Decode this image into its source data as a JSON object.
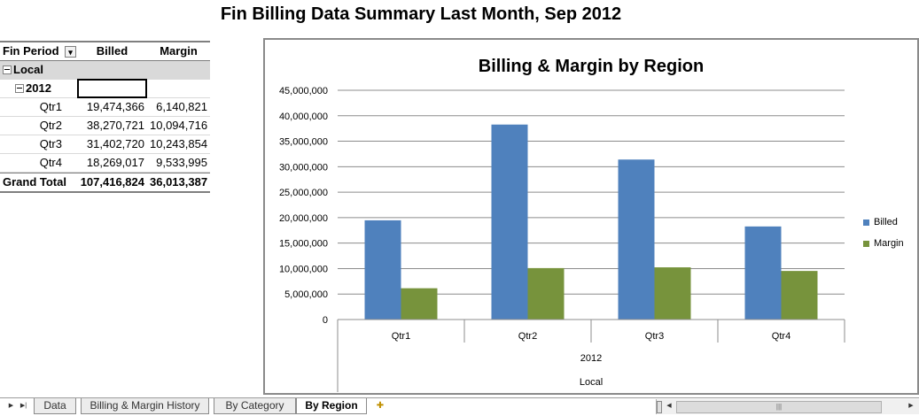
{
  "report_title": "Fin Billing Data Summary Last Month, Sep 2012",
  "pivot": {
    "headers": {
      "period": "Fin Period",
      "billed": "Billed",
      "margin": "Margin"
    },
    "region": "Local",
    "year": "2012",
    "rows": [
      {
        "label": "Qtr1",
        "billed": "19,474,366",
        "margin": "6,140,821"
      },
      {
        "label": "Qtr2",
        "billed": "38,270,721",
        "margin": "10,094,716"
      },
      {
        "label": "Qtr3",
        "billed": "31,402,720",
        "margin": "10,243,854"
      },
      {
        "label": "Qtr4",
        "billed": "18,269,017",
        "margin": "9,533,995"
      }
    ],
    "total": {
      "label": "Grand Total",
      "billed": "107,416,824",
      "margin": "36,013,387"
    }
  },
  "chart_data": {
    "type": "bar",
    "title": "Billing & Margin by Region",
    "categories": [
      "Qtr1",
      "Qtr2",
      "Qtr3",
      "Qtr4"
    ],
    "category_group": "2012",
    "category_group_outer": "Local",
    "series": [
      {
        "name": "Billed",
        "values": [
          19474366,
          38270721,
          31402720,
          18269017
        ],
        "color": "#4f81bd"
      },
      {
        "name": "Margin",
        "values": [
          6140821,
          10094716,
          10243854,
          9533995
        ],
        "color": "#77933c"
      }
    ],
    "ylim": [
      0,
      45000000
    ],
    "yticks": [
      "0",
      "5,000,000",
      "10,000,000",
      "15,000,000",
      "20,000,000",
      "25,000,000",
      "30,000,000",
      "35,000,000",
      "40,000,000",
      "45,000,000"
    ],
    "grid": true,
    "legend_position": "right"
  },
  "tabs": {
    "sheets": [
      "Data",
      "Billing & Margin History",
      "By Category",
      "By Region"
    ],
    "active": "By Region"
  }
}
